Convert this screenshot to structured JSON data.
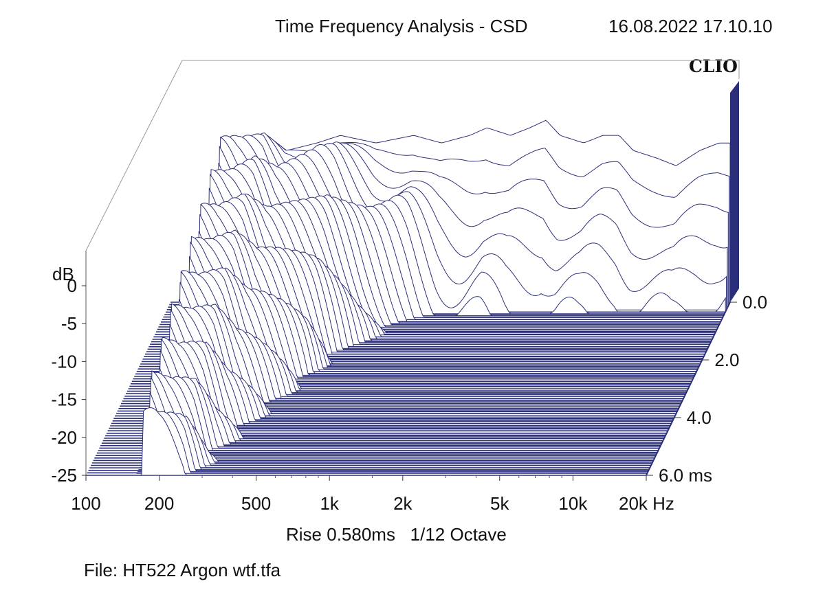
{
  "title": "Time Frequency Analysis - CSD",
  "timestamp": "16.08.2022 17.10.10",
  "brand": "CLIO",
  "subtitle": {
    "rise_label": "Rise 0.580ms",
    "smoothing_label": "1/12 Octave"
  },
  "file_label": "File: HT522 Argon wtf.tfa",
  "colors": {
    "trace": "#2b2f7a",
    "floor": "#2b2f7a",
    "background": "#ffffff"
  },
  "chart_data": {
    "type": "area",
    "title": "Time Frequency Analysis - CSD",
    "x_axis": {
      "scale": "log",
      "range": [
        100,
        20000
      ],
      "ticks": [
        100,
        200,
        500,
        1000,
        2000,
        5000,
        10000,
        20000
      ],
      "tick_labels": [
        "100",
        "200",
        "500",
        "1k",
        "2k",
        "5k",
        "10k",
        "20k Hz"
      ]
    },
    "y_axis": {
      "label": "dB",
      "range": [
        -25,
        0
      ],
      "ticks": [
        0,
        -5,
        -10,
        -15,
        -20,
        -25
      ],
      "tick_labels": [
        "0",
        "-5",
        "-10",
        "-15",
        "-20",
        "-25"
      ]
    },
    "z_axis": {
      "unit": "ms",
      "range": [
        0,
        6
      ],
      "ticks": [
        0,
        2,
        4,
        6
      ],
      "tick_labels": [
        "0.0",
        "2.0",
        "4.0",
        "6.0  ms"
      ]
    },
    "series": [
      {
        "time_ms": 0.0,
        "frequency_hz": [
          160,
          200,
          250,
          300,
          400,
          500,
          700,
          1000,
          1300,
          1700,
          2000,
          2500,
          3000,
          3500,
          4000,
          5000,
          6000,
          7000,
          8000,
          10000,
          12000,
          15000,
          18000,
          20000
        ],
        "level_db": [
          -3,
          -4,
          -3,
          -5,
          -4,
          -3,
          -4,
          -3,
          -4,
          -3,
          -2,
          -3,
          -2,
          -1,
          -3,
          -4,
          -3,
          -3,
          -5,
          -6,
          -7,
          -5,
          -4,
          -4
        ]
      }
    ]
  }
}
